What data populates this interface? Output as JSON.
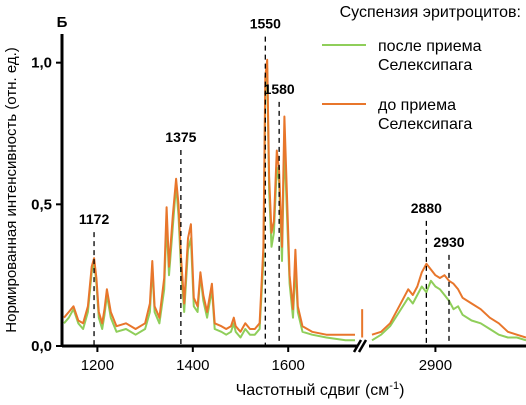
{
  "chart_data": {
    "type": "line",
    "panel_label": "Б",
    "legend_title": "Суспензия эритроцитов:",
    "legend_position": "top-right",
    "xlabel_text": "Частотный сдвиг (см",
    "xlabel_sup": "-1",
    "xlabel_close": ")",
    "ylabel": "Нормированная интенсивность (отн. ед.)",
    "ylim": [
      0,
      1.08
    ],
    "grid": false,
    "x_axis_break": true,
    "x_segments": [
      {
        "xlim": [
          1130,
          1740
        ],
        "ticks": [
          1200,
          1400,
          1600
        ],
        "tick_labels": [
          "1200",
          "1400",
          "1600"
        ]
      },
      {
        "xlim": [
          2760,
          3100
        ],
        "ticks": [
          2900
        ],
        "tick_labels": [
          "2900"
        ]
      }
    ],
    "y_ticks": [
      0,
      0.5,
      1.0
    ],
    "y_tick_labels": [
      "0,0",
      "0,5",
      "1,0"
    ],
    "series": [
      {
        "name": "после приема\nСелексипага",
        "color": "#8fce5a",
        "segments": [
          [
            [
              1130,
              0.08
            ],
            [
              1140,
              0.1
            ],
            [
              1150,
              0.13
            ],
            [
              1160,
              0.08
            ],
            [
              1170,
              0.06
            ],
            [
              1180,
              0.12
            ],
            [
              1188,
              0.26
            ],
            [
              1193,
              0.3
            ],
            [
              1198,
              0.22
            ],
            [
              1203,
              0.1
            ],
            [
              1210,
              0.06
            ],
            [
              1215,
              0.11
            ],
            [
              1220,
              0.18
            ],
            [
              1228,
              0.1
            ],
            [
              1240,
              0.05
            ],
            [
              1260,
              0.06
            ],
            [
              1280,
              0.04
            ],
            [
              1300,
              0.06
            ],
            [
              1310,
              0.12
            ],
            [
              1315,
              0.28
            ],
            [
              1320,
              0.12
            ],
            [
              1330,
              0.08
            ],
            [
              1340,
              0.2
            ],
            [
              1345,
              0.44
            ],
            [
              1350,
              0.25
            ],
            [
              1358,
              0.42
            ],
            [
              1365,
              0.57
            ],
            [
              1370,
              0.46
            ],
            [
              1375,
              0.28
            ],
            [
              1382,
              0.12
            ],
            [
              1390,
              0.34
            ],
            [
              1396,
              0.38
            ],
            [
              1402,
              0.14
            ],
            [
              1410,
              0.12
            ],
            [
              1416,
              0.25
            ],
            [
              1422,
              0.16
            ],
            [
              1430,
              0.1
            ],
            [
              1440,
              0.2
            ],
            [
              1446,
              0.06
            ],
            [
              1460,
              0.05
            ],
            [
              1470,
              0.04
            ],
            [
              1480,
              0.05
            ],
            [
              1486,
              0.08
            ],
            [
              1490,
              0.05
            ],
            [
              1500,
              0.03
            ],
            [
              1510,
              0.06
            ],
            [
              1520,
              0.04
            ],
            [
              1530,
              0.04
            ],
            [
              1540,
              0.06
            ],
            [
              1548,
              0.3
            ],
            [
              1552,
              0.9
            ],
            [
              1556,
              0.98
            ],
            [
              1560,
              0.55
            ],
            [
              1565,
              0.35
            ],
            [
              1570,
              0.4
            ],
            [
              1576,
              0.63
            ],
            [
              1581,
              0.58
            ],
            [
              1587,
              0.3
            ],
            [
              1592,
              0.72
            ],
            [
              1597,
              0.48
            ],
            [
              1603,
              0.22
            ],
            [
              1610,
              0.1
            ],
            [
              1615,
              0.28
            ],
            [
              1620,
              0.12
            ],
            [
              1630,
              0.05
            ],
            [
              1650,
              0.04
            ],
            [
              1680,
              0.03
            ],
            [
              1720,
              0.02
            ],
            [
              1740,
              0.02
            ]
          ],
          [
            [
              2760,
              0.02
            ],
            [
              2780,
              0.04
            ],
            [
              2800,
              0.07
            ],
            [
              2820,
              0.12
            ],
            [
              2840,
              0.17
            ],
            [
              2850,
              0.15
            ],
            [
              2860,
              0.18
            ],
            [
              2870,
              0.21
            ],
            [
              2880,
              0.19
            ],
            [
              2890,
              0.23
            ],
            [
              2900,
              0.21
            ],
            [
              2910,
              0.2
            ],
            [
              2920,
              0.18
            ],
            [
              2930,
              0.16
            ],
            [
              2940,
              0.13
            ],
            [
              2950,
              0.14
            ],
            [
              2960,
              0.11
            ],
            [
              2980,
              0.09
            ],
            [
              3000,
              0.08
            ],
            [
              3020,
              0.06
            ],
            [
              3040,
              0.04
            ],
            [
              3060,
              0.03
            ],
            [
              3080,
              0.03
            ],
            [
              3100,
              0.02
            ]
          ]
        ]
      },
      {
        "name": "до приема\nСелексипага",
        "color": "#e8762b",
        "segments": [
          [
            [
              1130,
              0.1
            ],
            [
              1140,
              0.12
            ],
            [
              1150,
              0.14
            ],
            [
              1160,
              0.09
            ],
            [
              1170,
              0.08
            ],
            [
              1180,
              0.14
            ],
            [
              1188,
              0.28
            ],
            [
              1193,
              0.31
            ],
            [
              1198,
              0.24
            ],
            [
              1203,
              0.12
            ],
            [
              1210,
              0.08
            ],
            [
              1215,
              0.13
            ],
            [
              1220,
              0.2
            ],
            [
              1228,
              0.12
            ],
            [
              1240,
              0.07
            ],
            [
              1260,
              0.08
            ],
            [
              1280,
              0.06
            ],
            [
              1300,
              0.08
            ],
            [
              1310,
              0.15
            ],
            [
              1315,
              0.3
            ],
            [
              1320,
              0.14
            ],
            [
              1330,
              0.1
            ],
            [
              1340,
              0.24
            ],
            [
              1345,
              0.49
            ],
            [
              1350,
              0.28
            ],
            [
              1358,
              0.46
            ],
            [
              1365,
              0.59
            ],
            [
              1370,
              0.5
            ],
            [
              1375,
              0.32
            ],
            [
              1382,
              0.15
            ],
            [
              1390,
              0.38
            ],
            [
              1396,
              0.43
            ],
            [
              1402,
              0.17
            ],
            [
              1410,
              0.14
            ],
            [
              1416,
              0.26
            ],
            [
              1422,
              0.18
            ],
            [
              1430,
              0.12
            ],
            [
              1440,
              0.22
            ],
            [
              1446,
              0.08
            ],
            [
              1460,
              0.07
            ],
            [
              1470,
              0.06
            ],
            [
              1480,
              0.07
            ],
            [
              1486,
              0.1
            ],
            [
              1490,
              0.07
            ],
            [
              1500,
              0.05
            ],
            [
              1510,
              0.08
            ],
            [
              1520,
              0.06
            ],
            [
              1530,
              0.06
            ],
            [
              1540,
              0.08
            ],
            [
              1548,
              0.35
            ],
            [
              1552,
              0.95
            ],
            [
              1556,
              1.01
            ],
            [
              1560,
              0.6
            ],
            [
              1565,
              0.4
            ],
            [
              1570,
              0.44
            ],
            [
              1576,
              0.69
            ],
            [
              1581,
              0.62
            ],
            [
              1587,
              0.35
            ],
            [
              1592,
              0.81
            ],
            [
              1597,
              0.55
            ],
            [
              1603,
              0.25
            ],
            [
              1610,
              0.13
            ],
            [
              1615,
              0.34
            ],
            [
              1620,
              0.14
            ],
            [
              1630,
              0.07
            ],
            [
              1650,
              0.05
            ],
            [
              1680,
              0.04
            ],
            [
              1720,
              0.04
            ],
            [
              1740,
              0.04
            ]
          ],
          [
            [
              2760,
              0.04
            ],
            [
              2780,
              0.05
            ],
            [
              2800,
              0.08
            ],
            [
              2820,
              0.14
            ],
            [
              2840,
              0.2
            ],
            [
              2850,
              0.18
            ],
            [
              2860,
              0.21
            ],
            [
              2870,
              0.26
            ],
            [
              2880,
              0.29
            ],
            [
              2890,
              0.27
            ],
            [
              2900,
              0.25
            ],
            [
              2910,
              0.24
            ],
            [
              2920,
              0.25
            ],
            [
              2930,
              0.23
            ],
            [
              2940,
              0.22
            ],
            [
              2950,
              0.2
            ],
            [
              2960,
              0.17
            ],
            [
              2980,
              0.15
            ],
            [
              3000,
              0.13
            ],
            [
              3020,
              0.1
            ],
            [
              3040,
              0.08
            ],
            [
              3060,
              0.05
            ],
            [
              3080,
              0.04
            ],
            [
              3100,
              0.03
            ]
          ]
        ]
      }
    ],
    "annotations": [
      {
        "text": "1172",
        "x": 1193,
        "label_y": 0.43,
        "line_from": 0.31
      },
      {
        "text": "1375",
        "x": 1375,
        "label_y": 0.72,
        "line_from": 0.59
      },
      {
        "text": "1550",
        "x": 1552,
        "label_y": 1.12,
        "line_from": 1.01
      },
      {
        "text": "1580",
        "x": 1581,
        "label_y": 0.89,
        "line_from": 0.82
      },
      {
        "text": "2880",
        "x": 2880,
        "label_y": 0.47,
        "line_from": 0.29
      },
      {
        "text": "2930",
        "x": 2930,
        "label_y": 0.35,
        "line_from": 0.23
      }
    ],
    "spike": {
      "x": 1755,
      "y": 0.13
    }
  }
}
